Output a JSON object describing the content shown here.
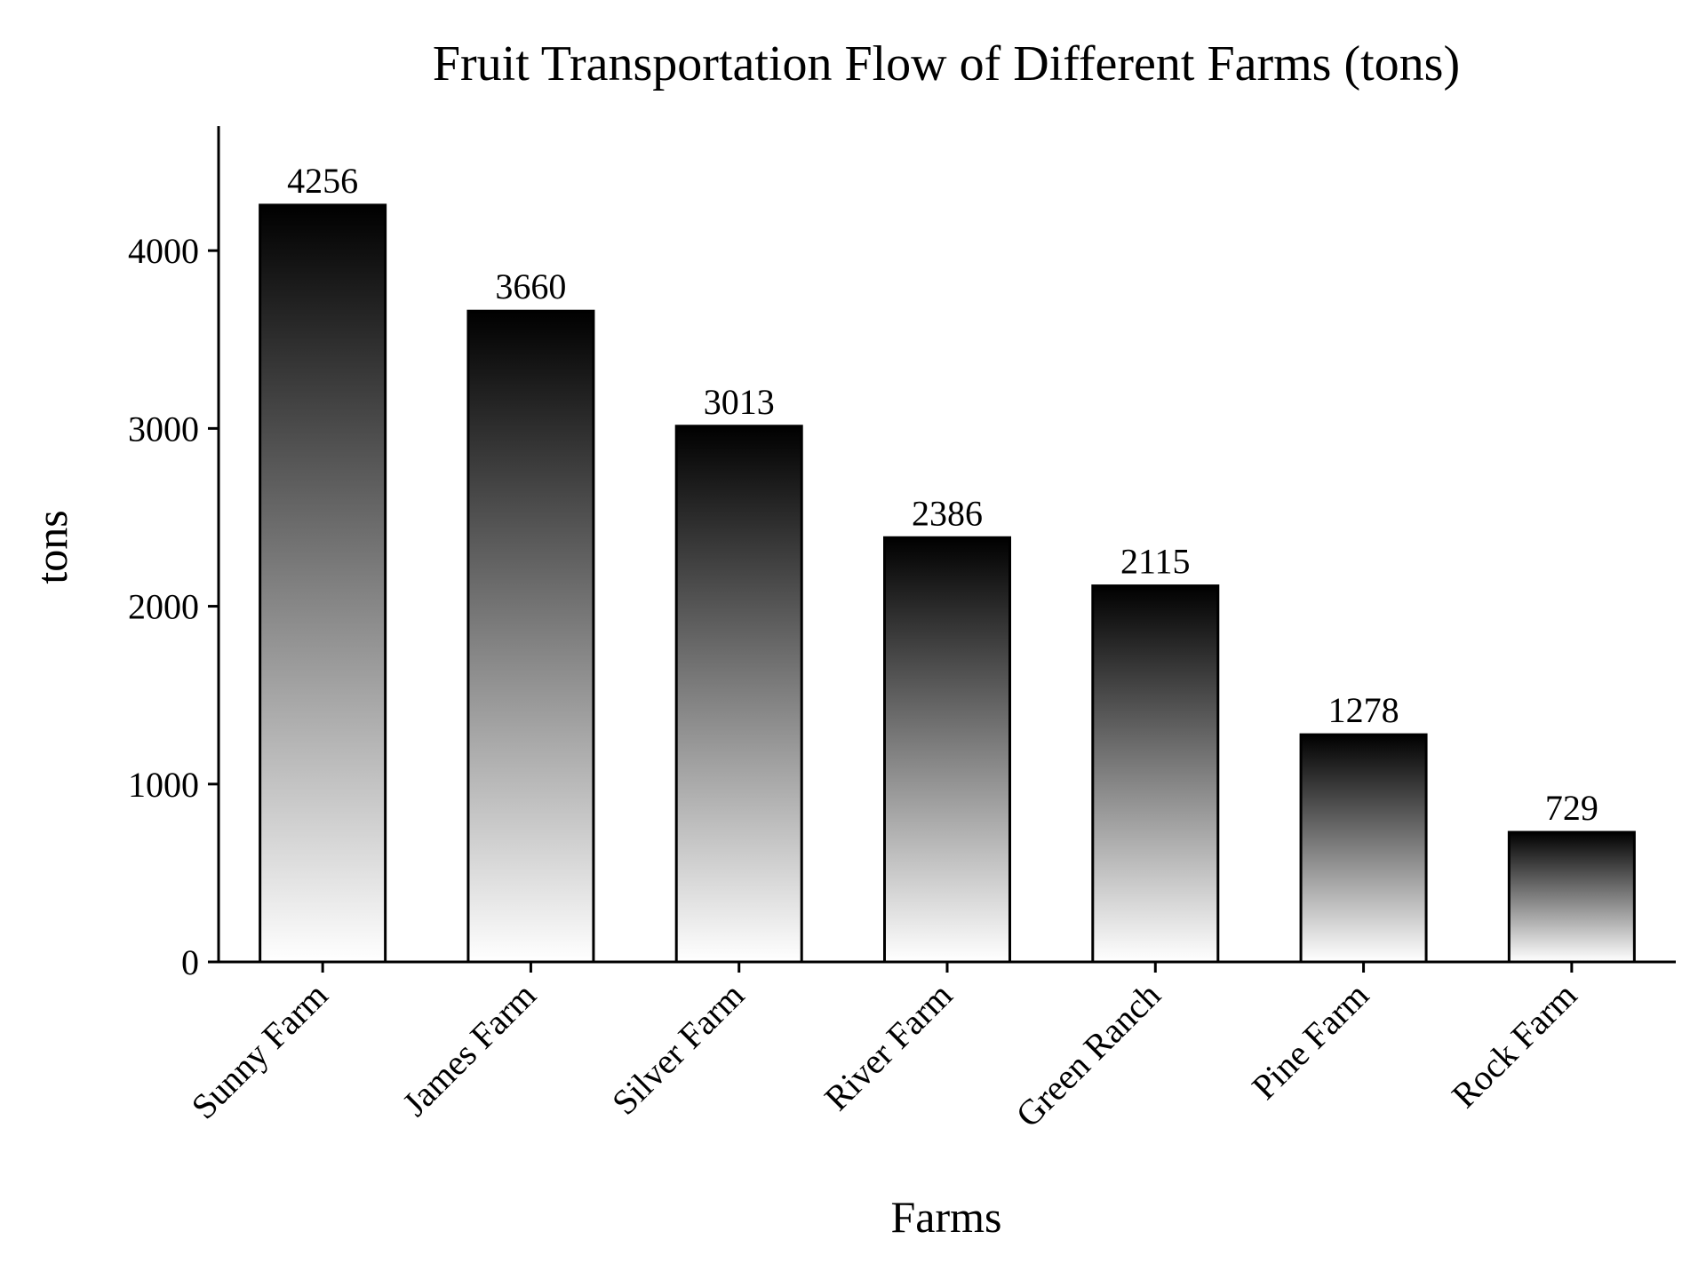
{
  "chart_data": {
    "type": "bar",
    "title": "Fruit Transportation Flow of Different Farms (tons)",
    "xlabel": "Farms",
    "ylabel": "tons",
    "categories": [
      "Sunny Farm",
      "James Farm",
      "Silver Farm",
      "River Farm",
      "Green Ranch",
      "Pine Farm",
      "Rock Farm"
    ],
    "values": [
      4256,
      3660,
      3013,
      2386,
      2115,
      1278,
      729
    ],
    "data_labels": [
      "4256",
      "3660",
      "3013",
      "2386",
      "2115",
      "1278",
      "729"
    ],
    "yticks": [
      0,
      1000,
      2000,
      3000,
      4000
    ],
    "ytick_labels": [
      "0",
      "1000",
      "2000",
      "3000",
      "4000"
    ],
    "ylim": [
      0,
      4700
    ],
    "grid": false,
    "legend": "none",
    "bar_fill": "vertical gradient, black at top to white at bottom",
    "colors": {
      "bar_top": "#000000",
      "bar_bottom": "#ffffff",
      "bar_edge": "#000000",
      "axis": "#000000",
      "text": "#000000"
    }
  }
}
